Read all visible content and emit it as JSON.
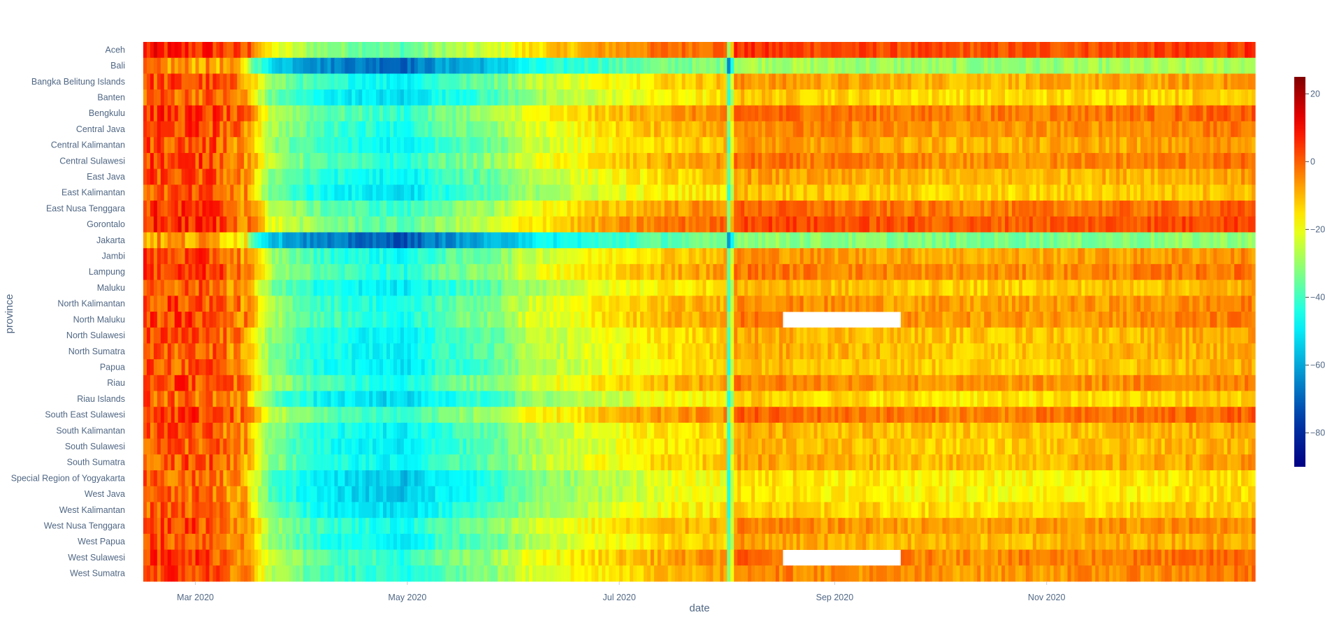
{
  "chart_data": {
    "type": "heatmap",
    "title": "",
    "xlabel": "date",
    "ylabel": "province",
    "x_range": [
      "2020-02-15",
      "2020-12-31"
    ],
    "x_ticks": [
      {
        "date": "2020-03-01",
        "label": "Mar 2020"
      },
      {
        "date": "2020-05-01",
        "label": "May 2020"
      },
      {
        "date": "2020-07-01",
        "label": "Jul 2020"
      },
      {
        "date": "2020-09-01",
        "label": "Sep 2020"
      },
      {
        "date": "2020-11-01",
        "label": "Nov 2020"
      }
    ],
    "provinces": [
      "Aceh",
      "Bali",
      "Bangka Belitung Islands",
      "Banten",
      "Bengkulu",
      "Central Java",
      "Central Kalimantan",
      "Central Sulawesi",
      "East Java",
      "East Kalimantan",
      "East Nusa Tenggara",
      "Gorontalo",
      "Jakarta",
      "Jambi",
      "Lampung",
      "Maluku",
      "North Kalimantan",
      "North Maluku",
      "North Sulawesi",
      "North Sumatra",
      "Papua",
      "Riau",
      "Riau Islands",
      "South East Sulawesi",
      "South Kalimantan",
      "South Sulawesi",
      "South Sumatra",
      "Special Region of Yogyakarta",
      "West Java",
      "West Kalimantan",
      "West Nusa Tenggara",
      "West Papua",
      "West Sulawesi",
      "West Sumatra"
    ],
    "colorscale": "jet",
    "zmin": -90,
    "zmax": 25,
    "colorbar_ticks": [
      20,
      0,
      -20,
      -40,
      -60,
      -80
    ],
    "colorbar_tick_labels": [
      "20",
      "0",
      "−20",
      "−40",
      "−60",
      "−80"
    ],
    "baseline_profile": [
      {
        "day": 0,
        "v": 3
      },
      {
        "day": 20,
        "v": 2
      },
      {
        "day": 30,
        "v": -6
      },
      {
        "day": 36,
        "v": -28
      },
      {
        "day": 50,
        "v": -40
      },
      {
        "day": 75,
        "v": -46
      },
      {
        "day": 85,
        "v": -38
      },
      {
        "day": 100,
        "v": -33
      },
      {
        "day": 110,
        "v": -24
      },
      {
        "day": 130,
        "v": -17
      },
      {
        "day": 150,
        "v": -11
      },
      {
        "day": 167,
        "v": -9
      },
      {
        "day": 168,
        "v": -37
      },
      {
        "day": 170,
        "v": -4
      },
      {
        "day": 200,
        "v": -6
      },
      {
        "day": 240,
        "v": -8
      },
      {
        "day": 290,
        "v": -6
      },
      {
        "day": 320,
        "v": -4
      }
    ],
    "province_offsets": {
      "Aceh": 9,
      "Bali": -23,
      "Bangka Belitung Islands": -2,
      "Banten": -7,
      "Bengkulu": 4,
      "Central Java": 1,
      "Central Kalimantan": -2,
      "Central Sulawesi": 2,
      "East Java": -3,
      "East Kalimantan": -6,
      "East Nusa Tenggara": 4,
      "Gorontalo": 8,
      "Jakarta": -26,
      "Jambi": -1,
      "Lampung": 2,
      "Maluku": -5,
      "North Kalimantan": 0,
      "North Maluku": 1,
      "North Sulawesi": -4,
      "North Sumatra": -4,
      "Papua": -5,
      "Riau": 1,
      "Riau Islands": -8,
      "South East Sulawesi": 4,
      "South Kalimantan": -4,
      "South Sulawesi": -5,
      "South Sumatra": -3,
      "Special Region of Yogyakarta": -10,
      "West Java": -10,
      "West Kalimantan": -7,
      "West Nusa Tenggara": 0,
      "West Papua": -3,
      "West Sulawesi": 3,
      "West Sumatra": 1
    },
    "missing_data": [
      {
        "province": "North Maluku",
        "from": "2020-08-17",
        "to": "2020-09-20"
      },
      {
        "province": "West Sulawesi",
        "from": "2020-08-17",
        "to": "2020-09-20"
      }
    ]
  }
}
